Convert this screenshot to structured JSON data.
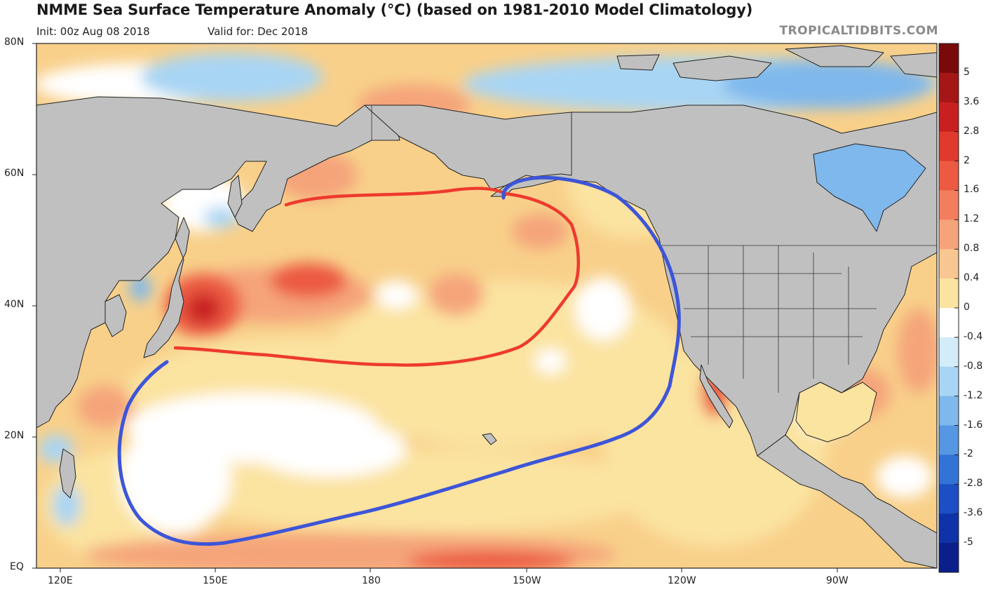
{
  "header": {
    "title": "NMME Sea Surface Temperature Anomaly (°C) (based on 1981-2010 Model Climatology)",
    "init": "Init: 00z Aug 08 2018",
    "valid": "Valid for: Dec 2018",
    "source": "TROPICALTIDBITS.COM"
  },
  "axes": {
    "lat_labels": [
      "80N",
      "60N",
      "40N",
      "20N",
      "EQ"
    ],
    "lon_labels": [
      "120E",
      "150E",
      "180",
      "150W",
      "120W",
      "90W"
    ]
  },
  "colorbar": {
    "labels": [
      "5",
      "3.6",
      "2.8",
      "2",
      "1.6",
      "1.2",
      "0.8",
      "0.4",
      "0",
      "-0.4",
      "-0.8",
      "-1.2",
      "-1.6",
      "-2",
      "-2.8",
      "-3.6",
      "-5"
    ],
    "colors": [
      "#7a0a0a",
      "#a51616",
      "#c82020",
      "#e03a2e",
      "#ec5a42",
      "#f27e5e",
      "#f5a47a",
      "#f8c690",
      "#fbe3a0",
      "#ffffff",
      "#d3ecfa",
      "#a9d5f4",
      "#7fb8ec",
      "#5597e3",
      "#3373d6",
      "#1c4fc4",
      "#0f32a8",
      "#0a1f8c"
    ]
  },
  "colors": {
    "land": "#c0c0c0",
    "ocean_warm": "#f8d58a",
    "ocean_neutral": "#ffffff",
    "ocean_cool": "#8ec6ef",
    "annotation_red": "#ee3a2e",
    "annotation_blue": "#3d55d8"
  }
}
